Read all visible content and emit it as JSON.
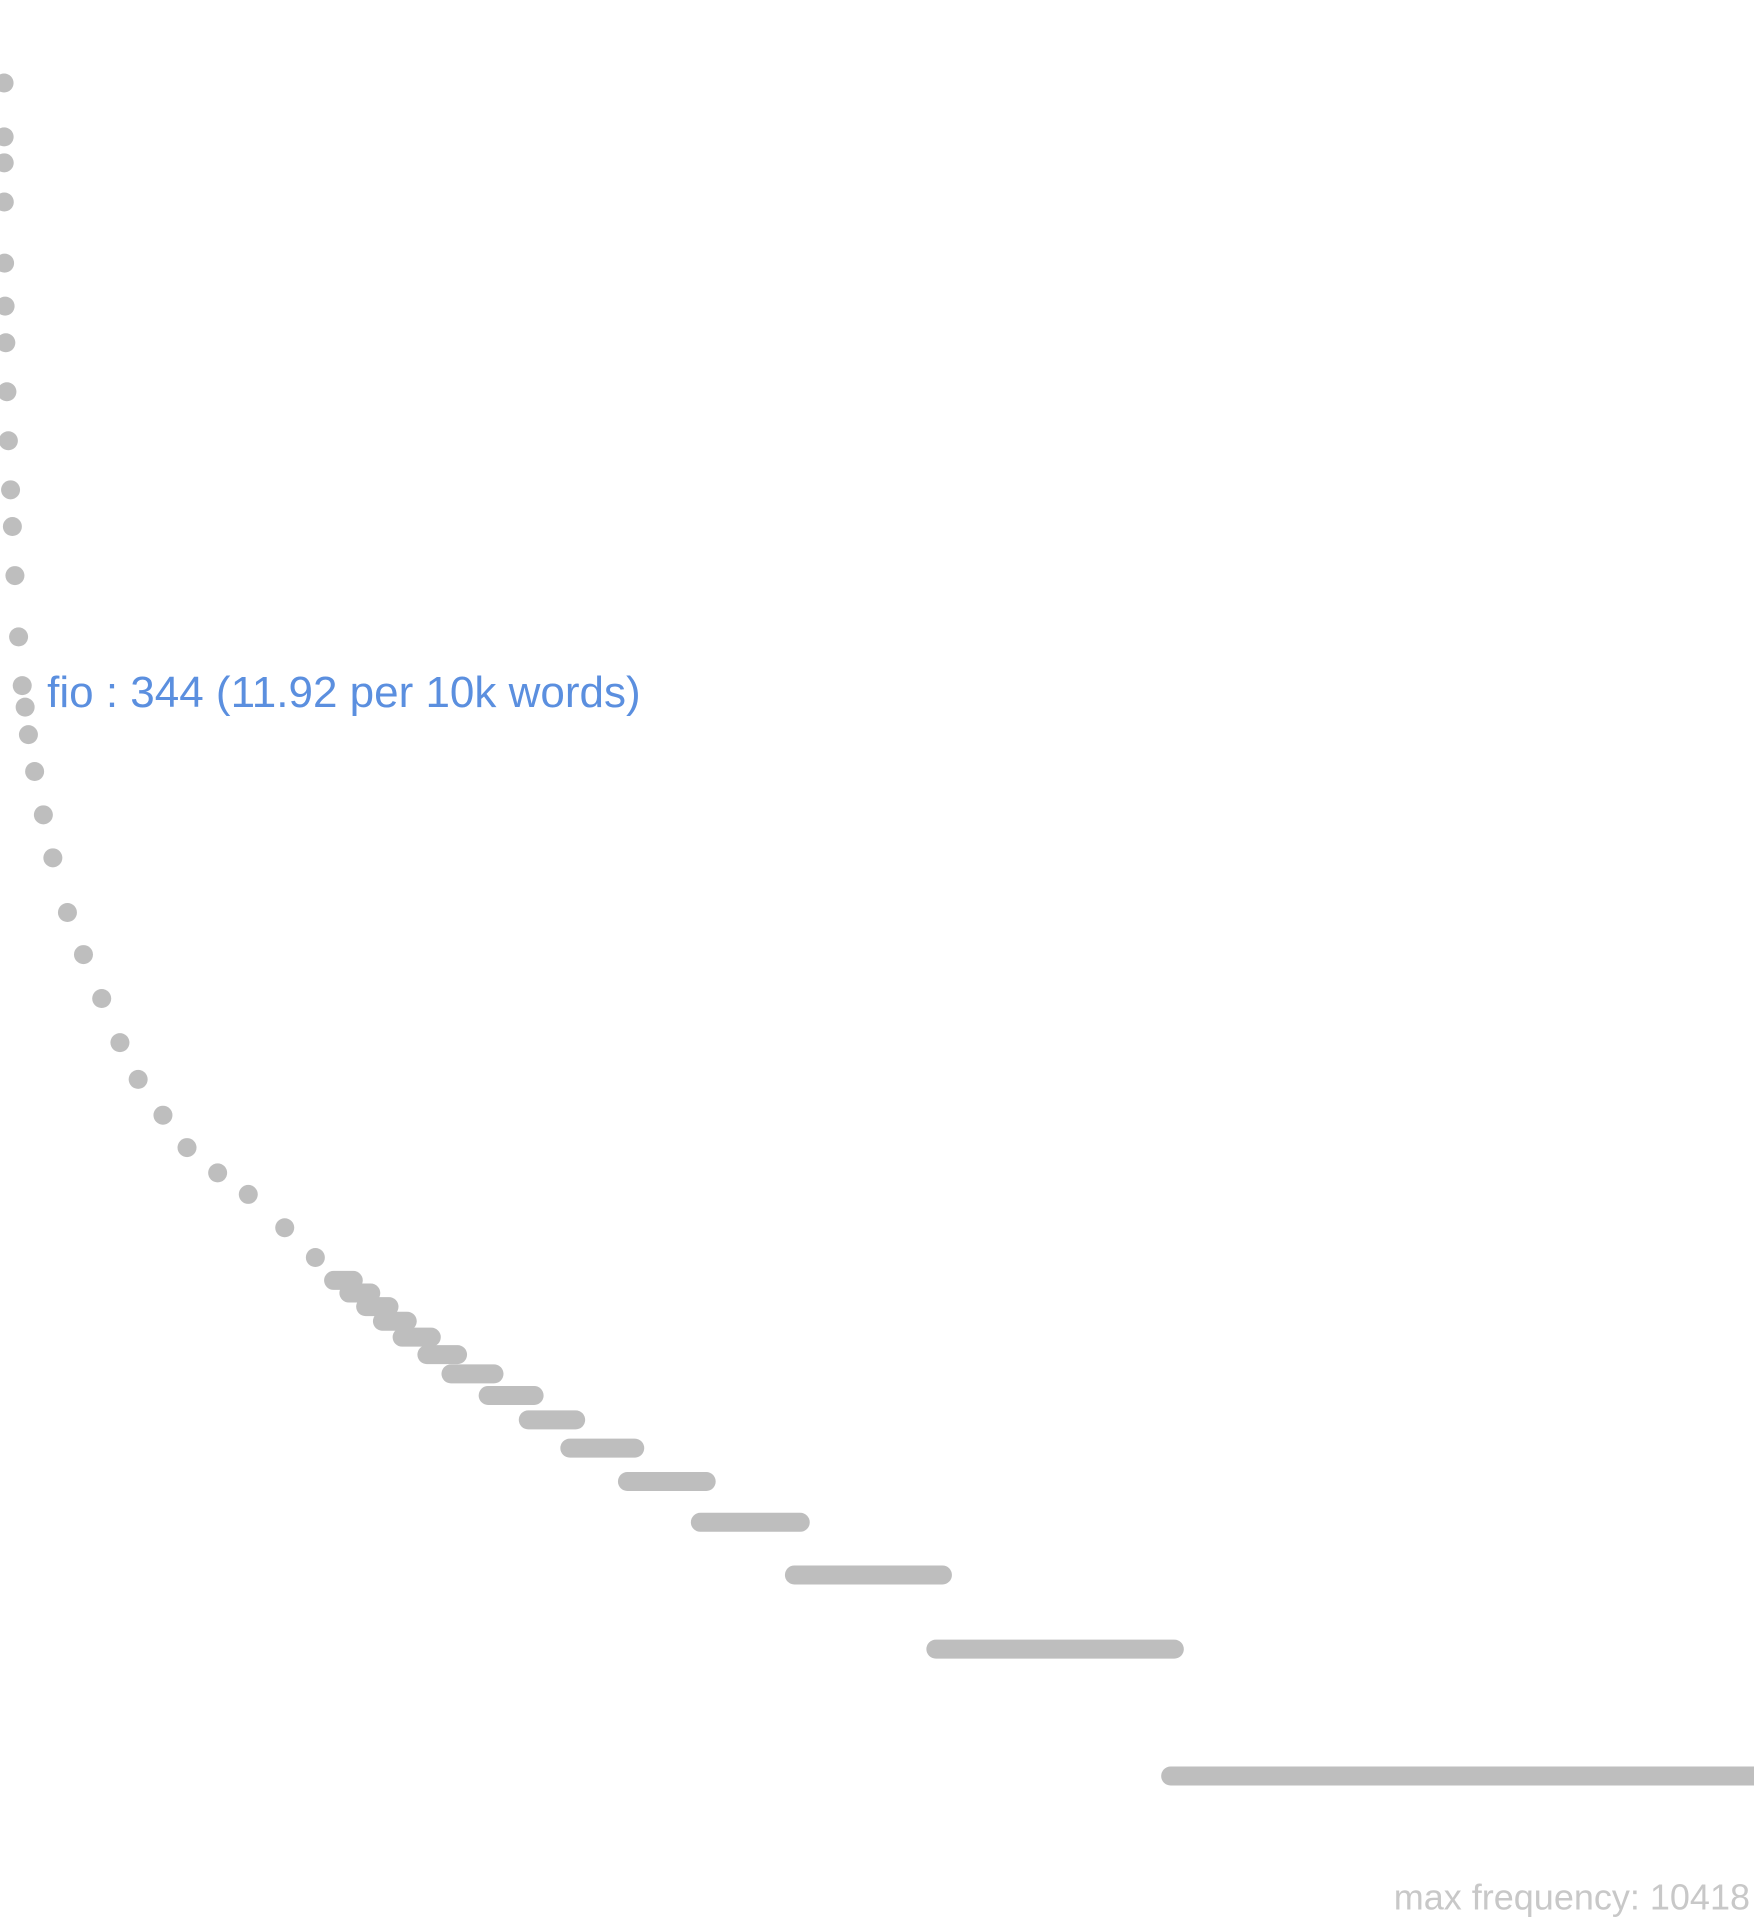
{
  "chart_data": {
    "type": "scatter",
    "color": "#bebebe",
    "annotation_color": "#5b8fdf",
    "log_y": true,
    "xlim": [
      0,
      24000
    ],
    "ylim": [
      1,
      10418
    ],
    "x": [
      1,
      2,
      3,
      4,
      8,
      15,
      25,
      40,
      60,
      90,
      115,
      150,
      200,
      250,
      290,
      335,
      420,
      540,
      670,
      870,
      1090,
      1340,
      1590,
      1840,
      2180,
      2510,
      2930,
      3350,
      3850,
      4270
    ],
    "values": [
      10418,
      7760,
      6735,
      5438,
      3893,
      3078,
      2520,
      1928,
      1475,
      1128,
      923,
      706,
      505,
      387,
      344,
      296,
      242,
      191,
      151,
      112,
      89,
      70,
      55,
      45,
      37,
      31,
      27,
      24,
      20,
      17
    ],
    "segments": [
      {
        "value": 15,
        "x": [
          4520,
          4790
        ]
      },
      {
        "value": 14,
        "x": [
          4730,
          5030
        ]
      },
      {
        "value": 13,
        "x": [
          4960,
          5280
        ]
      },
      {
        "value": 12,
        "x": [
          5190,
          5530
        ]
      },
      {
        "value": 11,
        "x": [
          5460,
          5860
        ]
      },
      {
        "value": 10,
        "x": [
          5800,
          6220
        ]
      },
      {
        "value": 9,
        "x": [
          6130,
          6720
        ]
      },
      {
        "value": 8,
        "x": [
          6640,
          7270
        ]
      },
      {
        "value": 7,
        "x": [
          7190,
          7840
        ]
      },
      {
        "value": 6,
        "x": [
          7760,
          8650
        ]
      },
      {
        "value": 5,
        "x": [
          8550,
          9630
        ]
      },
      {
        "value": 4,
        "x": [
          9550,
          10920
        ]
      },
      {
        "value": 3,
        "x": [
          10840,
          12870
        ]
      },
      {
        "value": 2,
        "x": [
          12780,
          16050
        ]
      },
      {
        "value": 1,
        "x": [
          16000,
          24000
        ]
      }
    ],
    "annotation": {
      "text": "fio : 344 (11.92 per 10k words)",
      "point": 14
    },
    "footer": "max frequency: 10418"
  }
}
